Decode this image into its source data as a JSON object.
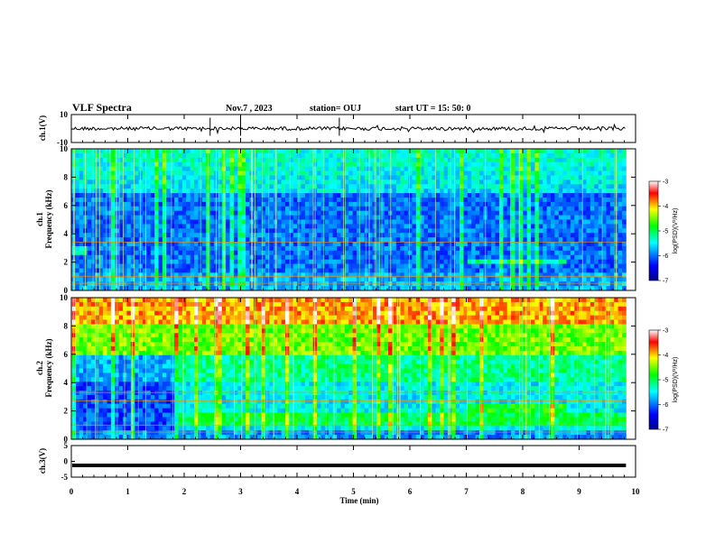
{
  "header": {
    "title": "VLF Spectra",
    "date": "Nov.7 , 2023",
    "station": "station= OUJ",
    "start": "start UT = 15: 50: 0"
  },
  "colors": {
    "dark_blue": "#00008b",
    "blue": "#0000ff",
    "cyan": "#00ffff",
    "green": "#00ff00",
    "yellow": "#ffff00",
    "red": "#ff0000"
  },
  "chart_data": [
    {
      "id": "ch1-waveform",
      "type": "line",
      "ylabel": "ch.1(V)",
      "ylim": [
        -10,
        10
      ],
      "yticks": [
        "10",
        "-10"
      ],
      "x_range_min": [
        0,
        9.83
      ],
      "baseline": 0,
      "amplitude": "small"
    },
    {
      "id": "ch1-spectrogram",
      "type": "heatmap",
      "ylabel": "ch.1\nFrequency (kHz)",
      "ylim": [
        0,
        10
      ],
      "yticks": [
        "0",
        "2",
        "4",
        "6",
        "8",
        "10"
      ],
      "colorbar": {
        "label": "log(PSD)(V²/Hz)",
        "range": [
          -7,
          -3
        ],
        "ticks": [
          "-3",
          "-4",
          "-5",
          "-6",
          "-7"
        ]
      },
      "features": {
        "hiss_band_khz": [
          1.8,
          2.3
        ],
        "hiss_band_time_min": [
          7.0,
          8.8
        ],
        "strong_lines_khz": [
          0.5,
          1.0,
          3.4
        ]
      }
    },
    {
      "id": "ch2-spectrogram",
      "type": "heatmap",
      "ylabel": "ch.2\nFrequency (kHz)",
      "ylim": [
        0,
        10
      ],
      "yticks": [
        "0",
        "2",
        "4",
        "6",
        "8",
        "10"
      ],
      "colorbar": {
        "label": "log(PSD)(V²/Hz)",
        "range": [
          -7,
          -3
        ],
        "ticks": [
          "-3",
          "-4",
          "-5",
          "-6",
          "-7"
        ]
      },
      "features": {
        "quiet_segment_time_min": [
          0,
          1.9
        ],
        "band_khz": [
          1.0,
          1.8
        ],
        "hiss_band_khz": [
          1.8,
          2.4
        ],
        "hiss_band_time_min": [
          7.0,
          8.8
        ]
      }
    },
    {
      "id": "ch3-waveform",
      "type": "line",
      "ylabel": "ch.3(V)",
      "ylim": [
        -5,
        5
      ],
      "yticks": [
        "5",
        "0",
        "-5"
      ],
      "level": -1.3,
      "x_range_min": [
        0,
        9.83
      ]
    }
  ],
  "xaxis": {
    "label": "Time (min)",
    "range": [
      0,
      10
    ],
    "ticks": [
      "0",
      "1",
      "2",
      "3",
      "4",
      "5",
      "6",
      "7",
      "8",
      "9",
      "10"
    ]
  }
}
